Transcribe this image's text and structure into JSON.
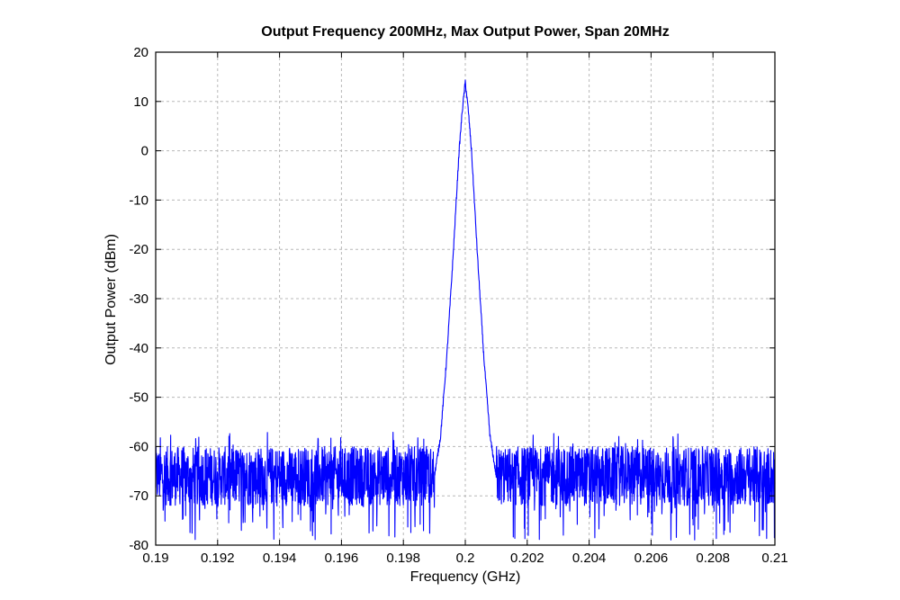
{
  "chart_data": {
    "type": "line",
    "title": "Output Frequency 200MHz, Max Output Power, Span 20MHz",
    "xlabel": "Frequency (GHz)",
    "ylabel": "Output Power (dBm)",
    "xlim": [
      0.19,
      0.21
    ],
    "ylim": [
      -80,
      20
    ],
    "grid": true,
    "x_ticks": [
      "0.19",
      "0.192",
      "0.194",
      "0.196",
      "0.198",
      "0.2",
      "0.202",
      "0.204",
      "0.206",
      "0.208",
      "0.21"
    ],
    "y_ticks": [
      "20",
      "10",
      "0",
      "-10",
      "-20",
      "-30",
      "-40",
      "-50",
      "-60",
      "-70",
      "-80"
    ],
    "series": [
      {
        "color": "#0000ff",
        "noise_floor": {
          "mean": -66,
          "upper": -57,
          "lower": -79
        },
        "x": [
          0.199,
          0.1992,
          0.1994,
          0.1996,
          0.1998,
          0.1999,
          0.2,
          0.2001,
          0.2002,
          0.2004,
          0.2006,
          0.2008,
          0.201
        ],
        "y": [
          -66,
          -58,
          -42,
          -22,
          0,
          8,
          14,
          8,
          0,
          -22,
          -42,
          -58,
          -66
        ]
      }
    ]
  }
}
